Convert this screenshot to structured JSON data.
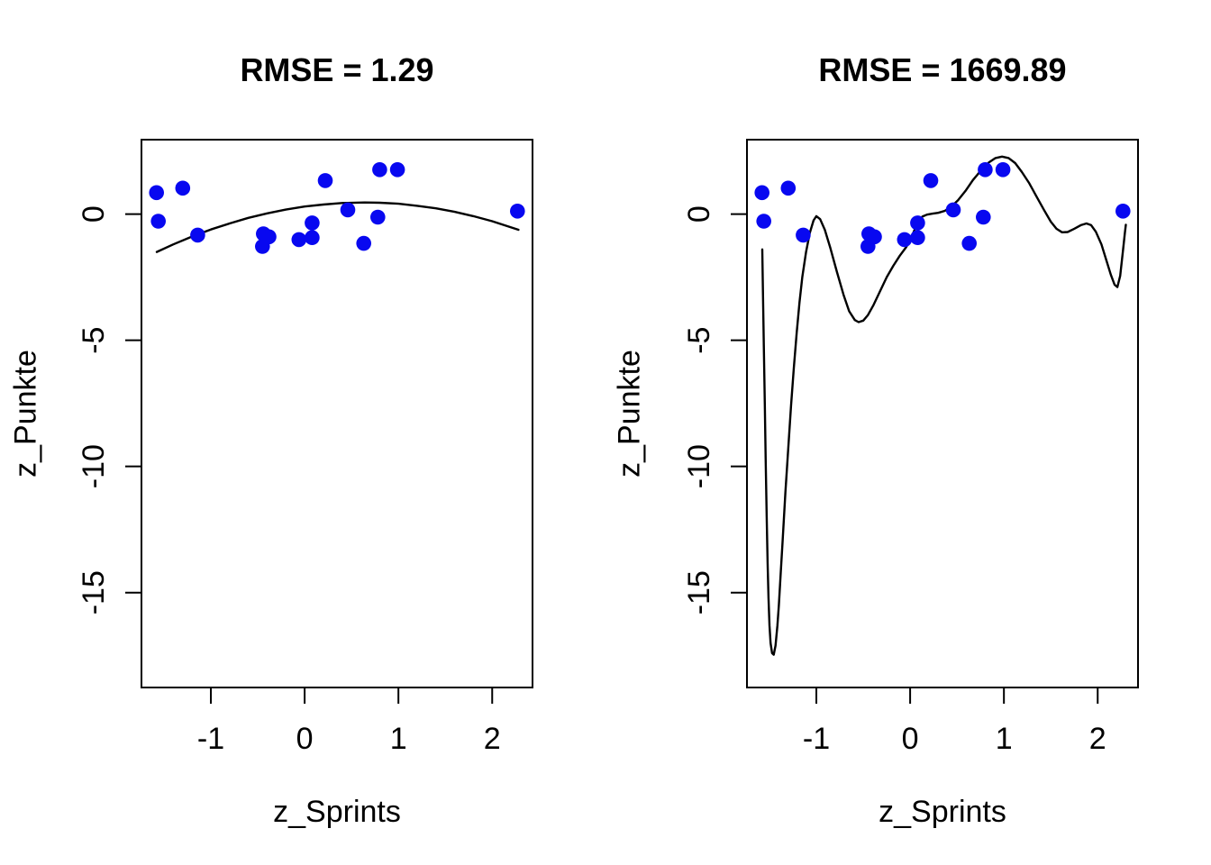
{
  "figure": {
    "background": "#ffffff",
    "point_color": "#0808f0",
    "curve_color": "#000000",
    "axis_color": "#000000"
  },
  "chart_data": [
    {
      "type": "scatter",
      "title": "RMSE = 1.29",
      "xlabel": "z_Sprints",
      "ylabel": "z_Punkte",
      "xlim": [
        -1.74,
        2.43
      ],
      "ylim": [
        -18.76,
        2.95
      ],
      "xticks": [
        -1,
        0,
        1,
        2
      ],
      "yticks": [
        0,
        -5,
        -10,
        -15
      ],
      "grid": false,
      "legend": null,
      "points": [
        [
          -1.58,
          0.85
        ],
        [
          -1.3,
          1.03
        ],
        [
          -1.56,
          -0.28
        ],
        [
          -1.14,
          -0.83
        ],
        [
          -0.44,
          -0.78
        ],
        [
          -0.38,
          -0.9
        ],
        [
          -0.45,
          -1.28
        ],
        [
          -0.06,
          -1.01
        ],
        [
          0.08,
          -0.35
        ],
        [
          0.08,
          -0.93
        ],
        [
          0.22,
          1.33
        ],
        [
          0.46,
          0.17
        ],
        [
          0.63,
          -1.16
        ],
        [
          0.78,
          -0.12
        ],
        [
          0.8,
          1.76
        ],
        [
          0.99,
          1.76
        ],
        [
          2.27,
          0.12
        ]
      ],
      "curve": [
        [
          -1.577,
          -1.5
        ],
        [
          -1.4,
          -1.2
        ],
        [
          -1.2,
          -0.89
        ],
        [
          -1.0,
          -0.61
        ],
        [
          -0.8,
          -0.37
        ],
        [
          -0.6,
          -0.15
        ],
        [
          -0.4,
          0.03
        ],
        [
          -0.2,
          0.18
        ],
        [
          0.0,
          0.3
        ],
        [
          0.2,
          0.38
        ],
        [
          0.4,
          0.44
        ],
        [
          0.64,
          0.46
        ],
        [
          0.8,
          0.45
        ],
        [
          1.0,
          0.41
        ],
        [
          1.2,
          0.33
        ],
        [
          1.4,
          0.23
        ],
        [
          1.6,
          0.09
        ],
        [
          1.8,
          -0.08
        ],
        [
          2.0,
          -0.28
        ],
        [
          2.28,
          -0.62
        ]
      ]
    },
    {
      "type": "scatter",
      "title": "RMSE = 1669.89",
      "xlabel": "z_Sprints",
      "ylabel": "z_Punkte",
      "xlim": [
        -1.74,
        2.43
      ],
      "ylim": [
        -18.76,
        2.95
      ],
      "xticks": [
        -1,
        0,
        1,
        2
      ],
      "yticks": [
        0,
        -5,
        -10,
        -15
      ],
      "grid": false,
      "legend": null,
      "points": [
        [
          -1.58,
          0.85
        ],
        [
          -1.3,
          1.03
        ],
        [
          -1.56,
          -0.28
        ],
        [
          -1.14,
          -0.83
        ],
        [
          -0.44,
          -0.78
        ],
        [
          -0.38,
          -0.9
        ],
        [
          -0.45,
          -1.28
        ],
        [
          -0.06,
          -1.01
        ],
        [
          0.08,
          -0.35
        ],
        [
          0.08,
          -0.93
        ],
        [
          0.22,
          1.33
        ],
        [
          0.46,
          0.17
        ],
        [
          0.63,
          -1.16
        ],
        [
          0.78,
          -0.12
        ],
        [
          0.8,
          1.76
        ],
        [
          0.99,
          1.76
        ],
        [
          2.27,
          0.12
        ]
      ],
      "curve": [
        [
          -1.577,
          -1.4
        ],
        [
          -1.57,
          -3.0
        ],
        [
          -1.56,
          -5.2
        ],
        [
          -1.55,
          -7.5
        ],
        [
          -1.54,
          -9.8
        ],
        [
          -1.53,
          -12.0
        ],
        [
          -1.52,
          -13.8
        ],
        [
          -1.51,
          -15.2
        ],
        [
          -1.5,
          -16.3
        ],
        [
          -1.488,
          -17.0
        ],
        [
          -1.472,
          -17.4
        ],
        [
          -1.455,
          -17.46
        ],
        [
          -1.435,
          -17.1
        ],
        [
          -1.415,
          -16.3
        ],
        [
          -1.4,
          -15.5
        ],
        [
          -1.38,
          -14.2
        ],
        [
          -1.36,
          -13.0
        ],
        [
          -1.33,
          -11.0
        ],
        [
          -1.3,
          -9.3
        ],
        [
          -1.27,
          -7.6
        ],
        [
          -1.24,
          -6.1
        ],
        [
          -1.21,
          -4.7
        ],
        [
          -1.18,
          -3.5
        ],
        [
          -1.15,
          -2.5
        ],
        [
          -1.11,
          -1.5
        ],
        [
          -1.07,
          -0.75
        ],
        [
          -1.03,
          -0.25
        ],
        [
          -1.0,
          -0.08
        ],
        [
          -0.96,
          -0.2
        ],
        [
          -0.91,
          -0.62
        ],
        [
          -0.85,
          -1.35
        ],
        [
          -0.78,
          -2.3
        ],
        [
          -0.71,
          -3.2
        ],
        [
          -0.65,
          -3.85
        ],
        [
          -0.59,
          -4.2
        ],
        [
          -0.55,
          -4.28
        ],
        [
          -0.5,
          -4.22
        ],
        [
          -0.45,
          -4.0
        ],
        [
          -0.39,
          -3.6
        ],
        [
          -0.32,
          -3.05
        ],
        [
          -0.25,
          -2.5
        ],
        [
          -0.18,
          -2.05
        ],
        [
          -0.11,
          -1.65
        ],
        [
          -0.04,
          -1.3
        ],
        [
          0.01,
          -0.95
        ],
        [
          0.05,
          -0.6
        ],
        [
          0.09,
          -0.3
        ],
        [
          0.13,
          -0.1
        ],
        [
          0.18,
          -0.02
        ],
        [
          0.24,
          0.02
        ],
        [
          0.3,
          0.05
        ],
        [
          0.37,
          0.13
        ],
        [
          0.44,
          0.3
        ],
        [
          0.51,
          0.55
        ],
        [
          0.59,
          0.92
        ],
        [
          0.67,
          1.35
        ],
        [
          0.76,
          1.75
        ],
        [
          0.84,
          2.05
        ],
        [
          0.91,
          2.22
        ],
        [
          0.98,
          2.28
        ],
        [
          1.05,
          2.22
        ],
        [
          1.12,
          2.02
        ],
        [
          1.19,
          1.68
        ],
        [
          1.27,
          1.22
        ],
        [
          1.35,
          0.68
        ],
        [
          1.43,
          0.15
        ],
        [
          1.5,
          -0.3
        ],
        [
          1.56,
          -0.58
        ],
        [
          1.62,
          -0.72
        ],
        [
          1.68,
          -0.71
        ],
        [
          1.75,
          -0.58
        ],
        [
          1.82,
          -0.44
        ],
        [
          1.88,
          -0.37
        ],
        [
          1.93,
          -0.44
        ],
        [
          1.98,
          -0.7
        ],
        [
          2.04,
          -1.2
        ],
        [
          2.09,
          -1.8
        ],
        [
          2.14,
          -2.4
        ],
        [
          2.18,
          -2.8
        ],
        [
          2.21,
          -2.89
        ],
        [
          2.24,
          -2.45
        ],
        [
          2.27,
          -1.45
        ],
        [
          2.29,
          -0.75
        ],
        [
          2.3,
          -0.42
        ]
      ]
    }
  ]
}
